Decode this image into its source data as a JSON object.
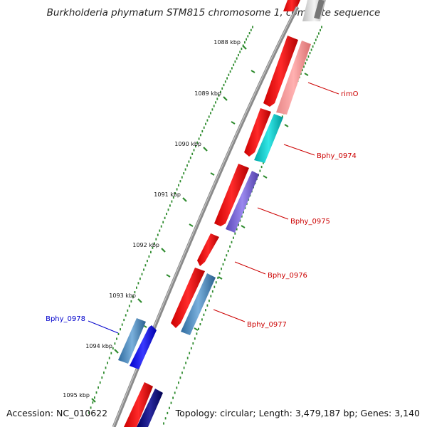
{
  "title": "Burkholderia phymatum STM815 chromosome 1, complete sequence",
  "footer": {
    "accession": "Accession: NC_010622",
    "summary": "Topology: circular; Length: 3,479,187 bp; Genes: 3,140"
  },
  "colors": {
    "backbone": "#8a8a8a",
    "tick": "#2e8b2e",
    "forward_gene": "#ff1a1a",
    "label_red": "#cc0000",
    "label_blue": "#0000cc"
  },
  "ticks": [
    {
      "label": "1088 kbp"
    },
    {
      "label": "1089 kbp"
    },
    {
      "label": "1090 kbp"
    },
    {
      "label": "1091 kbp"
    },
    {
      "label": "1092 kbp"
    },
    {
      "label": "1093 kbp"
    },
    {
      "label": "1094 kbp"
    },
    {
      "label": "1095 kbp"
    }
  ],
  "gene_labels": [
    {
      "name": "rimO",
      "color": "#cc0000"
    },
    {
      "name": "Bphy_0974",
      "color": "#cc0000"
    },
    {
      "name": "Bphy_0975",
      "color": "#cc0000"
    },
    {
      "name": "Bphy_0976",
      "color": "#cc0000"
    },
    {
      "name": "Bphy_0977",
      "color": "#cc0000"
    },
    {
      "name": "Bphy_0978",
      "color": "#0000cc"
    }
  ]
}
